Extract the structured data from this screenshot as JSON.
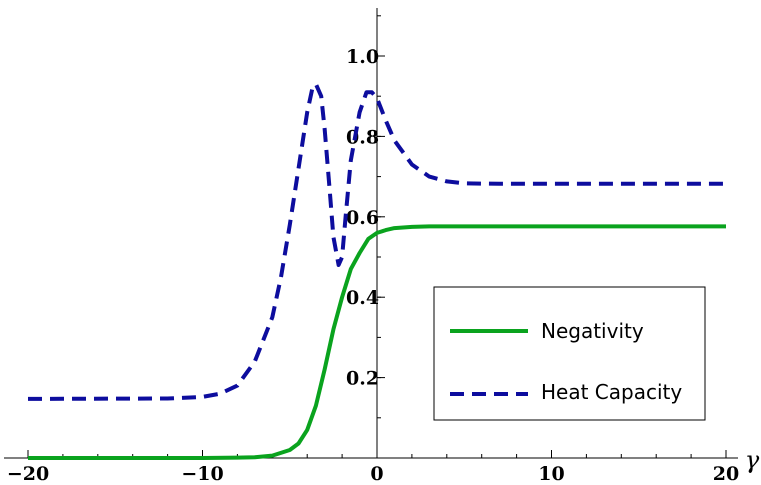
{
  "chart_data": {
    "type": "line",
    "xlabel": "γ",
    "ylabel": "",
    "xlim": [
      -21,
      20.5
    ],
    "ylim": [
      0,
      1.12
    ],
    "xticks": [
      -20,
      -10,
      0,
      10,
      20
    ],
    "xtick_labels": [
      "−20",
      "−10",
      "0",
      "10",
      "20"
    ],
    "yticks": [
      0.2,
      0.4,
      0.6,
      0.8,
      1.0
    ],
    "ytick_labels": [
      "0.2",
      "0.4",
      "0.6",
      "0.8",
      "1.0"
    ],
    "grid": false,
    "legend_position": "lower-right",
    "series": [
      {
        "name": "Negativity",
        "color": "#0aa31e",
        "style": "solid",
        "x": [
          -20,
          -10,
          -8,
          -7,
          -6,
          -5,
          -4.5,
          -4,
          -3.5,
          -3,
          -2.5,
          -2,
          -1.5,
          -1,
          -0.5,
          0,
          0.5,
          1,
          2,
          3,
          5,
          10,
          20
        ],
        "y": [
          0.0,
          0.0,
          0.001,
          0.002,
          0.006,
          0.02,
          0.036,
          0.07,
          0.13,
          0.22,
          0.32,
          0.4,
          0.47,
          0.51,
          0.545,
          0.56,
          0.567,
          0.572,
          0.575,
          0.576,
          0.576,
          0.576,
          0.576
        ]
      },
      {
        "name": "Heat Capacity",
        "color": "#0d0d9e",
        "style": "dashed",
        "x": [
          -20,
          -12,
          -10,
          -9,
          -8,
          -7,
          -6,
          -5.5,
          -5,
          -4.5,
          -4,
          -3.7,
          -3.5,
          -3.2,
          -3,
          -2.7,
          -2.5,
          -2.2,
          -2,
          -1.8,
          -1.5,
          -1,
          -0.6,
          -0.3,
          0,
          0.5,
          1,
          2,
          3,
          4,
          5,
          7,
          10,
          20
        ],
        "y": [
          0.147,
          0.148,
          0.152,
          0.16,
          0.18,
          0.24,
          0.35,
          0.45,
          0.58,
          0.72,
          0.86,
          0.92,
          0.93,
          0.9,
          0.82,
          0.66,
          0.55,
          0.48,
          0.5,
          0.6,
          0.74,
          0.86,
          0.91,
          0.91,
          0.895,
          0.84,
          0.79,
          0.73,
          0.7,
          0.688,
          0.683,
          0.682,
          0.682,
          0.682
        ]
      }
    ]
  }
}
